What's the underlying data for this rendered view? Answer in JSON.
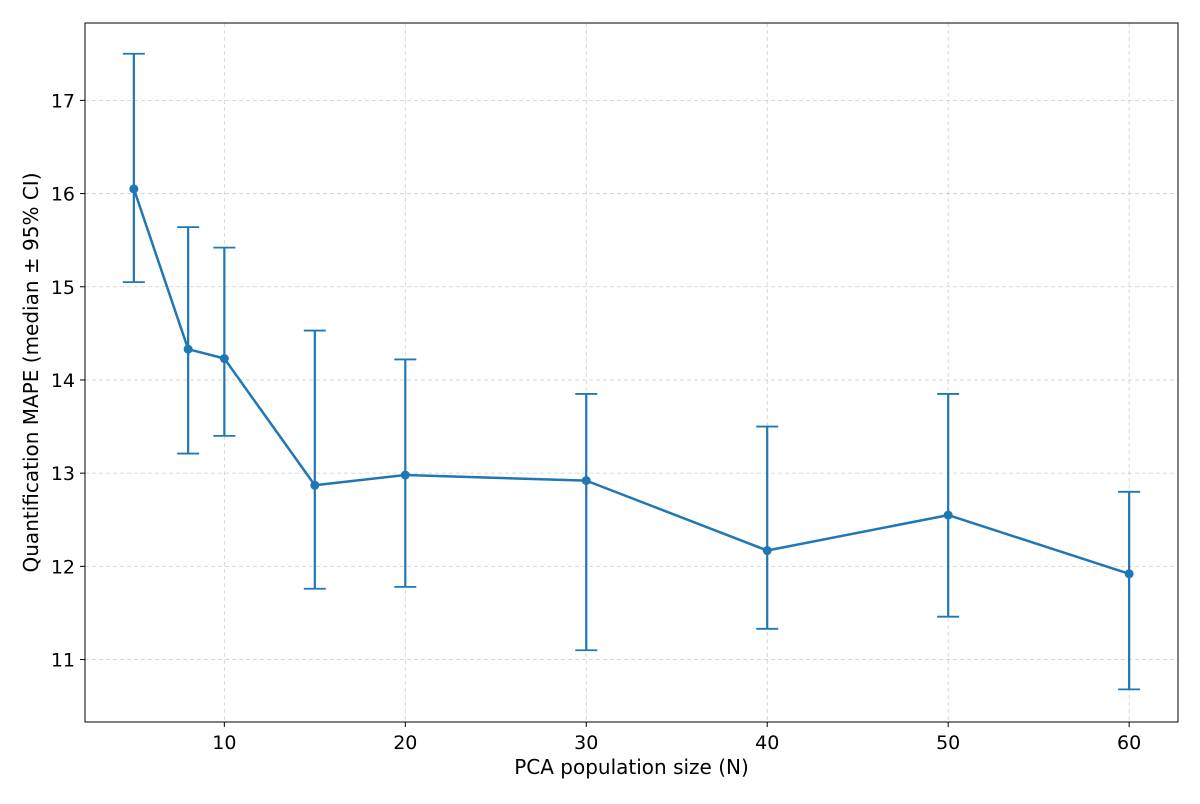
{
  "chart_data": {
    "type": "line",
    "title": "",
    "xlabel": "PCA population size (N)",
    "ylabel": "Quantification MAPE (median ± 95% CI)",
    "xlim": [
      2.3,
      62.7
    ],
    "ylim": [
      10.33,
      17.83
    ],
    "x_ticks": [
      10,
      20,
      30,
      40,
      50,
      60
    ],
    "y_ticks": [
      11,
      12,
      13,
      14,
      15,
      16,
      17
    ],
    "grid": true,
    "legend": "none",
    "series": [
      {
        "color": "#1f77b4",
        "points": [
          {
            "x": 5,
            "y": 16.05,
            "lower": 15.05,
            "upper": 17.5
          },
          {
            "x": 8,
            "y": 14.33,
            "lower": 13.21,
            "upper": 15.64
          },
          {
            "x": 10,
            "y": 14.23,
            "lower": 13.4,
            "upper": 15.42
          },
          {
            "x": 15,
            "y": 12.87,
            "lower": 11.76,
            "upper": 14.53
          },
          {
            "x": 20,
            "y": 12.98,
            "lower": 11.78,
            "upper": 14.22
          },
          {
            "x": 30,
            "y": 12.92,
            "lower": 11.1,
            "upper": 13.85
          },
          {
            "x": 40,
            "y": 12.17,
            "lower": 11.33,
            "upper": 13.5
          },
          {
            "x": 50,
            "y": 12.55,
            "lower": 11.46,
            "upper": 13.85
          },
          {
            "x": 60,
            "y": 11.92,
            "lower": 10.68,
            "upper": 12.8
          }
        ]
      }
    ]
  }
}
